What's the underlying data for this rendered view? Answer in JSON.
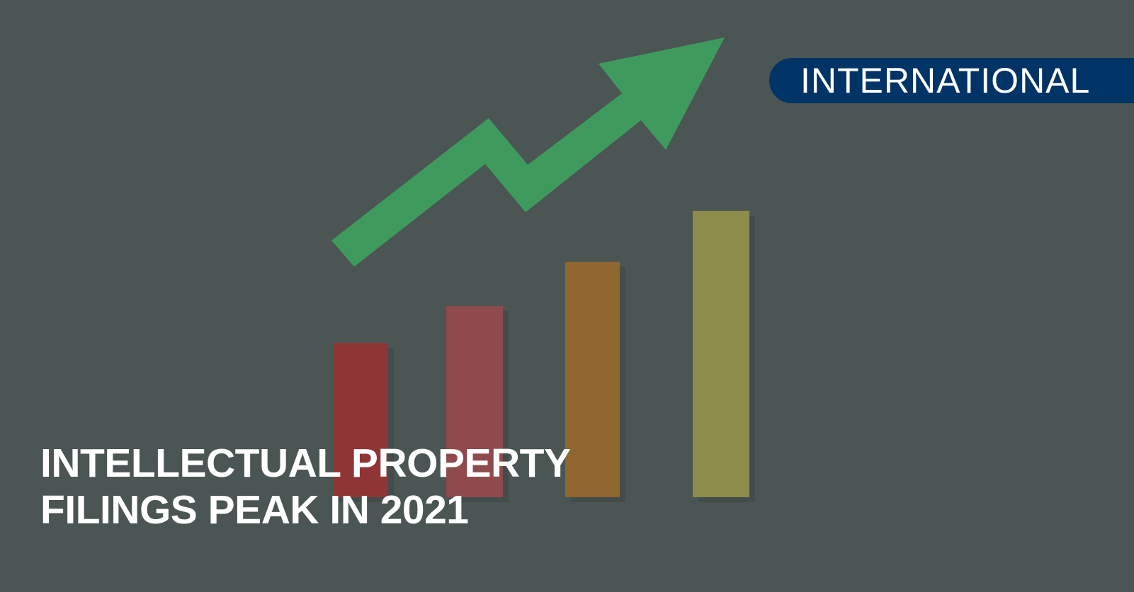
{
  "badge": {
    "label": "INTERNATIONAL",
    "color": "#003366"
  },
  "headline": {
    "line1": "INTELLECTUAL PROPERTY",
    "line2": "FILINGS PEAK IN 2021"
  },
  "photo": {
    "background_color": "#4b5553",
    "arrow_icon": "trend-up-arrow",
    "arrow_color": "#3f9a5e",
    "bar_colors": [
      "#8f3535",
      "#8e4a4d",
      "#8f6530",
      "#8e8c4a"
    ]
  }
}
